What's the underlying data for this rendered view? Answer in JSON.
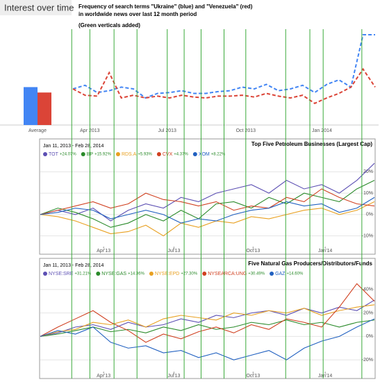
{
  "chart_data": [
    {
      "type": "line",
      "title": "Interest over time",
      "annotations": [
        "Frequency of search terms \"Ukraine\" (blue) and \"Venezuela\" (red)",
        "in worldwide news over last 12 month period",
        "(Green verticals added)"
      ],
      "x": [
        0,
        1,
        2,
        3,
        4,
        5,
        6,
        7,
        8,
        9,
        10,
        11,
        12,
        13,
        14,
        15,
        16,
        17,
        18,
        19,
        20,
        21,
        22,
        23,
        24,
        25
      ],
      "xlim": [
        0,
        25
      ],
      "ylim": [
        0,
        100
      ],
      "xticks": [
        {
          "value": 1.4,
          "label": "Apr 2013"
        },
        {
          "value": 7.8,
          "label": "Jul 2013"
        },
        {
          "value": 14.3,
          "label": "Oct 2013"
        },
        {
          "value": 20.6,
          "label": "Jan 2014"
        }
      ],
      "series": [
        {
          "color": "#4285f4",
          "values": [
            40,
            44,
            36,
            38,
            42,
            40,
            30,
            35,
            36,
            38,
            35,
            35,
            37,
            38,
            42,
            40,
            45,
            38,
            40,
            44,
            36,
            45,
            50,
            42,
            100,
            100
          ]
        },
        {
          "color": "#db4437",
          "values": [
            40,
            33,
            32,
            58,
            30,
            33,
            30,
            32,
            30,
            33,
            31,
            30,
            32,
            32,
            33,
            31,
            35,
            32,
            30,
            33,
            24,
            30,
            35,
            42,
            62,
            42
          ]
        }
      ],
      "average_label": "Average",
      "averages": [
        42,
        36
      ],
      "verticals": {
        "color": "#3aaa3a",
        "x": [
          -0.1,
          1.4,
          3.4,
          5.3,
          7.8,
          9.2,
          10.6,
          12.5,
          14.3,
          17.6,
          19.6,
          20.7,
          23.9
        ]
      }
    },
    {
      "type": "line",
      "title": "Top Five Petroleum Businesses (Largest Cap)",
      "subtitle": "Jan 11, 2013 - Feb 28, 2014",
      "x": [
        0,
        1,
        2,
        3,
        4,
        5,
        6,
        7,
        8,
        9,
        10,
        11,
        12,
        13,
        14,
        15,
        16,
        17,
        18,
        19
      ],
      "xlim": [
        0,
        19
      ],
      "ylim": [
        -15,
        25
      ],
      "xticks": [
        {
          "value": 3.6,
          "label": "Apr'13"
        },
        {
          "value": 7.6,
          "label": "Jul'13"
        },
        {
          "value": 12.1,
          "label": "Oct'13"
        },
        {
          "value": 16.2,
          "label": "Jan'14"
        }
      ],
      "yticks": [
        {
          "value": 20,
          "label": "20%"
        },
        {
          "value": 10,
          "label": "10%"
        },
        {
          "value": 0,
          "label": "0%"
        },
        {
          "value": -10,
          "label": "-10%"
        }
      ],
      "series": [
        {
          "name": "TOT",
          "change": "+24.07%",
          "color": "#5c4fb3",
          "values": [
            0,
            2,
            0,
            3,
            -3,
            2,
            5,
            3,
            8,
            6,
            10,
            12,
            14,
            10,
            16,
            12,
            14,
            10,
            16,
            24
          ]
        },
        {
          "name": "BP",
          "change": "+15.92%",
          "color": "#2a8a2a",
          "values": [
            0,
            3,
            1,
            -2,
            -6,
            -4,
            0,
            -3,
            2,
            -2,
            5,
            6,
            3,
            8,
            5,
            10,
            8,
            6,
            12,
            16
          ]
        },
        {
          "name": "RDS.A",
          "change": "+5.93%",
          "color": "#e8a020",
          "values": [
            0,
            -1,
            -3,
            -6,
            -9,
            -8,
            -5,
            -10,
            -4,
            -6,
            -3,
            -4,
            -1,
            -2,
            0,
            2,
            3,
            0,
            2,
            6
          ]
        },
        {
          "name": "CVX",
          "change": "+4.37%",
          "color": "#d04020",
          "values": [
            0,
            2,
            4,
            6,
            3,
            5,
            10,
            7,
            6,
            4,
            6,
            2,
            4,
            3,
            8,
            6,
            12,
            8,
            5,
            4
          ]
        },
        {
          "name": "XOM",
          "change": "+8.22%",
          "color": "#2060c0",
          "values": [
            0,
            1,
            3,
            2,
            -2,
            0,
            2,
            0,
            -4,
            -2,
            -3,
            0,
            2,
            3,
            6,
            4,
            5,
            1,
            3,
            8
          ]
        }
      ]
    },
    {
      "type": "line",
      "title": "Five Natural Gas Producers/Distributors/Funds",
      "subtitle": "Jan 11, 2013 - Feb 28, 2014",
      "x": [
        0,
        1,
        2,
        3,
        4,
        5,
        6,
        7,
        8,
        9,
        10,
        11,
        12,
        13,
        14,
        15,
        16,
        17,
        18,
        19
      ],
      "xlim": [
        0,
        19
      ],
      "ylim": [
        -30,
        50
      ],
      "xticks": [
        {
          "value": 3.6,
          "label": "Apr'13"
        },
        {
          "value": 7.6,
          "label": "Jul'13"
        },
        {
          "value": 12.1,
          "label": "Oct'13"
        },
        {
          "value": 16.2,
          "label": "Jan'14"
        }
      ],
      "yticks": [
        {
          "value": 40,
          "label": "40%"
        },
        {
          "value": 20,
          "label": "20%"
        },
        {
          "value": 0,
          "label": "0%"
        },
        {
          "value": -20,
          "label": "-20%"
        }
      ],
      "series": [
        {
          "name": "NYSE:SRE",
          "change": "+31.21%",
          "color": "#5c4fb3",
          "values": [
            0,
            3,
            8,
            10,
            6,
            12,
            8,
            10,
            15,
            12,
            18,
            16,
            20,
            22,
            18,
            24,
            20,
            25,
            22,
            31
          ]
        },
        {
          "name": "NYSE:GAS",
          "change": "+14.36%",
          "color": "#2a8a2a",
          "values": [
            0,
            2,
            5,
            8,
            4,
            6,
            3,
            8,
            5,
            10,
            6,
            8,
            12,
            10,
            14,
            10,
            12,
            8,
            12,
            14
          ]
        },
        {
          "name": "NYSE:EPD",
          "change": "+27.30%",
          "color": "#e8a020",
          "values": [
            0,
            4,
            6,
            12,
            10,
            14,
            8,
            15,
            18,
            16,
            14,
            20,
            18,
            22,
            20,
            24,
            18,
            22,
            25,
            27
          ]
        },
        {
          "name": "NYSEARCA:UNG",
          "change": "+30.49%",
          "color": "#d04020",
          "values": [
            0,
            8,
            15,
            22,
            12,
            5,
            -5,
            2,
            -2,
            4,
            8,
            3,
            10,
            6,
            15,
            12,
            8,
            25,
            45,
            30
          ]
        },
        {
          "name": "GAZ",
          "change": "+14.60%",
          "color": "#2060c0",
          "values": [
            0,
            5,
            2,
            8,
            -5,
            -10,
            -8,
            -14,
            -12,
            -18,
            -14,
            -20,
            -16,
            -12,
            -20,
            -10,
            -4,
            0,
            8,
            15
          ]
        }
      ]
    }
  ]
}
